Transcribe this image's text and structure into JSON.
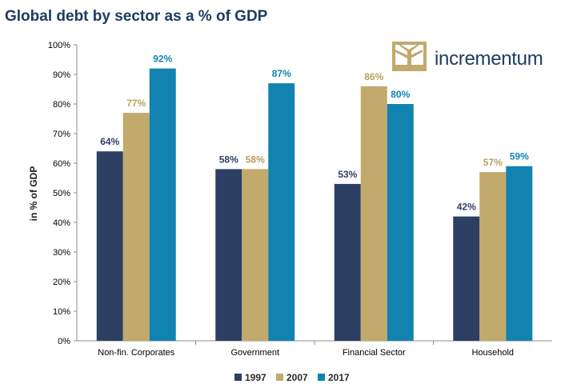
{
  "brand": {
    "name": "incrementum",
    "logo_icon": "tree-logo-icon",
    "logo_color": "#c1aa6c"
  },
  "chart_data": {
    "type": "bar",
    "title": "Global debt by sector as a % of GDP",
    "ylabel": "in % of GDP",
    "ylim": [
      0,
      100
    ],
    "yticks": [
      "0%",
      "10%",
      "20%",
      "30%",
      "40%",
      "50%",
      "60%",
      "70%",
      "80%",
      "90%",
      "100%"
    ],
    "categories": [
      "Non-fin. Corporates",
      "Government",
      "Financial Sector",
      "Household"
    ],
    "series": [
      {
        "name": "1997",
        "color": "#2d3f63",
        "label_color": "#2d3f63",
        "values": [
          64,
          58,
          53,
          42
        ],
        "labels": [
          "64%",
          "58%",
          "53%",
          "42%"
        ]
      },
      {
        "name": "2007",
        "color": "#c1aa6c",
        "label_color": "#b89f5c",
        "values": [
          77,
          58,
          86,
          57
        ],
        "labels": [
          "77%",
          "58%",
          "86%",
          "57%"
        ]
      },
      {
        "name": "2017",
        "color": "#1283b0",
        "label_color": "#1283b0",
        "values": [
          92,
          87,
          80,
          59
        ],
        "labels": [
          "92%",
          "87%",
          "80%",
          "59%"
        ]
      }
    ],
    "grid": false,
    "legend_position": "bottom-center"
  }
}
